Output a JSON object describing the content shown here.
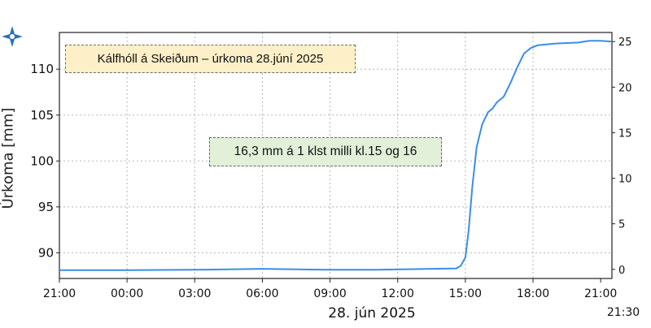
{
  "chart_data": {
    "type": "line",
    "title": "Kálfhóll á Skeiðum – úrkoma 28.júní 2025",
    "annotation": "16,3 mm á 1 klst milli kl.15 og 16",
    "ylabel": "Úrkoma [mm]",
    "date_label": "28. jún 2025",
    "x_ticks": [
      "21:00",
      "00:00",
      "03:00",
      "06:00",
      "09:00",
      "12:00",
      "15:00",
      "18:00",
      "21:00"
    ],
    "x_end_label": "21:30",
    "x_range_hours": [
      0,
      24.5
    ],
    "y_left_ticks": [
      90,
      95,
      100,
      105,
      110
    ],
    "y_left_range": [
      87.2,
      114
    ],
    "y_right_ticks": [
      0,
      5,
      10,
      15,
      20,
      25
    ],
    "y_right_range": [
      -1,
      26
    ],
    "grid": true,
    "series": [
      {
        "color": "#3a8ee6",
        "x": [
          0,
          3,
          6,
          9,
          12,
          14,
          17.6,
          17.8,
          18.0,
          18.15,
          18.3,
          18.5,
          18.75,
          19.0,
          19.2,
          19.4,
          19.7,
          20.0,
          20.3,
          20.6,
          20.9,
          21.2,
          22,
          23,
          23.5,
          24,
          24.5
        ],
        "y": [
          88.1,
          88.1,
          88.15,
          88.25,
          88.15,
          88.15,
          88.3,
          88.6,
          89.5,
          92.5,
          97,
          101.5,
          104,
          105.3,
          105.7,
          106.4,
          107.0,
          108.5,
          110.2,
          111.7,
          112.3,
          112.6,
          112.8,
          112.9,
          113.1,
          113.1,
          113.0
        ]
      }
    ]
  }
}
